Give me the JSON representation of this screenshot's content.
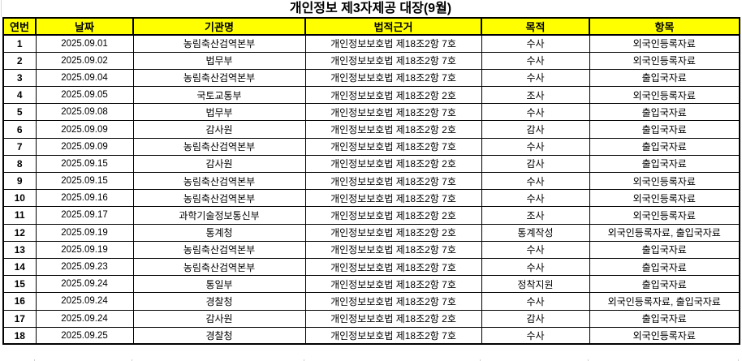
{
  "title": "개인정보 제3자제공 대장(9월)",
  "table": {
    "headers": [
      "연번",
      "날짜",
      "기관명",
      "법적근거",
      "목적",
      "항목"
    ],
    "rows": [
      [
        "1",
        "2025.09.01",
        "농림축산검역본부",
        "개인정보보호법 제18조2항 7호",
        "수사",
        "외국인등록자료"
      ],
      [
        "2",
        "2025.09.02",
        "법무부",
        "개인정보보호법 제18조2항 7호",
        "수사",
        "외국인등록자료"
      ],
      [
        "3",
        "2025.09.04",
        "농림축산검역본부",
        "개인정보보호법 제18조2항 7호",
        "수사",
        "출입국자료"
      ],
      [
        "4",
        "2025.09.05",
        "국토교통부",
        "개인정보보호법 제18조2항 2호",
        "조사",
        "외국인등록자료"
      ],
      [
        "5",
        "2025.09.08",
        "법무부",
        "개인정보보호법 제18조2항 7호",
        "수사",
        "출입국자료"
      ],
      [
        "6",
        "2025.09.09",
        "감사원",
        "개인정보보호법 제18조2항 2호",
        "감사",
        "출입국자료"
      ],
      [
        "7",
        "2025.09.09",
        "농림축산검역본부",
        "개인정보보호법 제18조2항 7호",
        "수사",
        "출입국자료"
      ],
      [
        "8",
        "2025.09.15",
        "감사원",
        "개인정보보호법 제18조2항 2호",
        "감사",
        "출입국자료"
      ],
      [
        "9",
        "2025.09.15",
        "농림축산검역본부",
        "개인정보보호법 제18조2항 7호",
        "수사",
        "외국인등록자료"
      ],
      [
        "10",
        "2025.09.16",
        "농림축산검역본부",
        "개인정보보호법 제18조2항 7호",
        "수사",
        "외국인등록자료"
      ],
      [
        "11",
        "2025.09.17",
        "과학기술정보통신부",
        "개인정보보호법 제18조2항 2호",
        "조사",
        "외국인등록자료"
      ],
      [
        "12",
        "2025.09.19",
        "통계청",
        "개인정보보호법 제18조2항 2호",
        "통계작성",
        "외국인등록자료, 출입국자료"
      ],
      [
        "13",
        "2025.09.19",
        "농림축산검역본부",
        "개인정보보호법 제18조2항 7호",
        "수사",
        "출입국자료"
      ],
      [
        "14",
        "2025.09.23",
        "농림축산검역본부",
        "개인정보보호법 제18조2항 7호",
        "수사",
        "출입국자료"
      ],
      [
        "15",
        "2025.09.24",
        "통일부",
        "개인정보보호법 제18조2항 7호",
        "정착지원",
        "출입국자료"
      ],
      [
        "16",
        "2025.09.24",
        "경찰청",
        "개인정보보호법 제18조2항 7호",
        "수사",
        "외국인등록자료, 출입국자료"
      ],
      [
        "17",
        "2025.09.24",
        "감사원",
        "개인정보보호법 제18조2항 2호",
        "감사",
        "출입국자료"
      ],
      [
        "18",
        "2025.09.25",
        "경찰청",
        "개인정보보호법 제18조2항 7호",
        "수사",
        "외국인등록자료"
      ]
    ]
  },
  "colors": {
    "header_bg": "#ffff00",
    "border": "#000000",
    "text": "#000000",
    "gridline": "#d0d0d0"
  }
}
